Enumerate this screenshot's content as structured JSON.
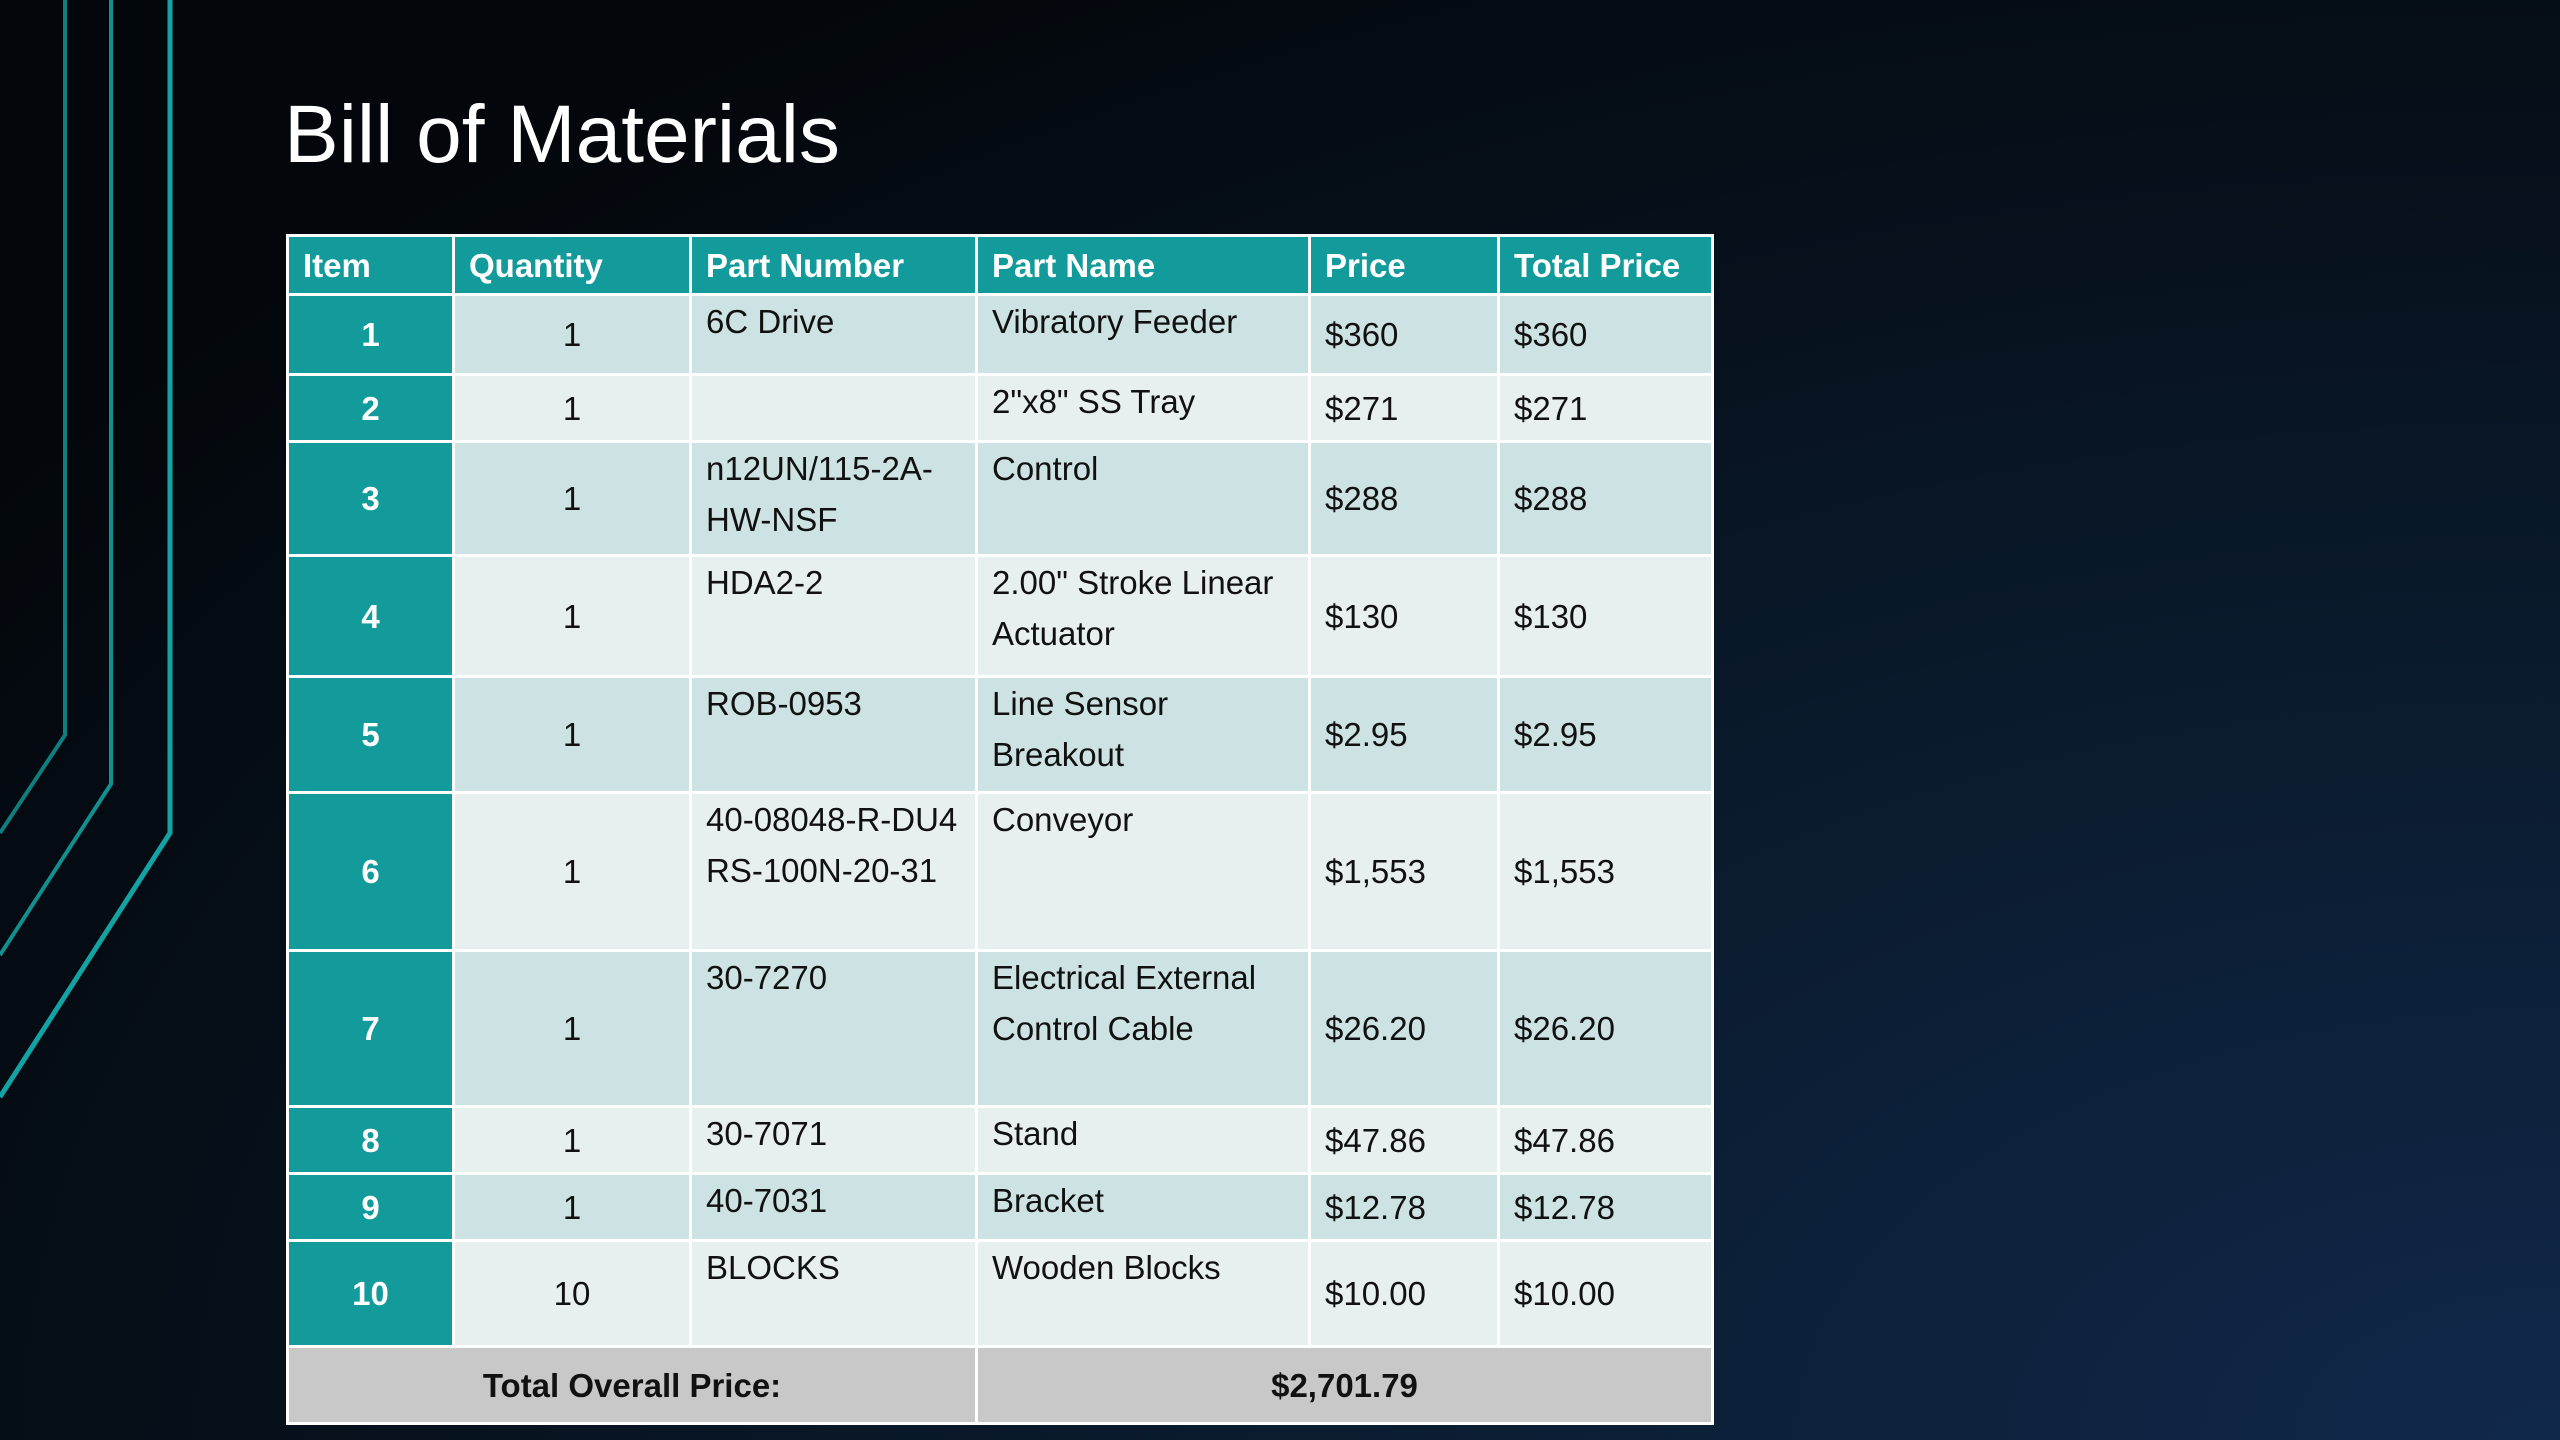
{
  "header": {
    "title": "Bill of Materials"
  },
  "table": {
    "columns": [
      "Item",
      "Quantity",
      "Part Number",
      "Part Name",
      "Price",
      "Total Price"
    ],
    "rows": [
      [
        "1",
        "1",
        "6C Drive",
        "Vibratory Feeder",
        "$360",
        "$360"
      ],
      [
        "2",
        "1",
        null,
        "2\"x8\" SS Tray",
        "$271",
        "$271"
      ],
      [
        "3",
        "1",
        "n12UN/115-2A-HW-NSF",
        "Control",
        "$288",
        "$288"
      ],
      [
        "4",
        "1",
        "HDA2-2",
        "2.00\" Stroke Linear Actuator",
        "$130",
        "$130"
      ],
      [
        "5",
        "1",
        "ROB-0953",
        "Line Sensor Breakout",
        "$2.95",
        "$2.95"
      ],
      [
        "6",
        "1",
        "40-08048-R-DU4 RS-100N-20-31",
        "Conveyor",
        "$1,553",
        "$1,553"
      ],
      [
        "7",
        "1",
        "30-7270",
        "Electrical External Control Cable",
        "$26.20",
        "$26.20"
      ],
      [
        "8",
        "1",
        "30-7071",
        "Stand",
        "$47.86",
        "$47.86"
      ],
      [
        "9",
        "1",
        "40-7031",
        "Bracket",
        "$12.78",
        "$12.78"
      ],
      [
        "10",
        "10",
        "BLOCKS",
        "Wooden Blocks",
        "$10.00",
        "$10.00"
      ]
    ],
    "total_label": "Total Overall Price:",
    "total_value": "$2,701.79"
  }
}
